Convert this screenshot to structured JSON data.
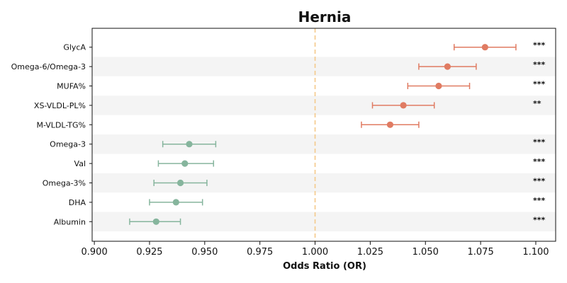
{
  "chart_data": {
    "type": "forest",
    "title": "Hernia",
    "xlabel": "Odds Ratio (OR)",
    "xlim": [
      0.899,
      1.109
    ],
    "xticks": [
      "0.900",
      "0.925",
      "0.950",
      "0.975",
      "1.000",
      "1.025",
      "1.050",
      "1.075",
      "1.100"
    ],
    "reference_line": 1.0,
    "colors": {
      "positive": "#e07b62",
      "negative": "#86b59d",
      "reference": "#f5c98a",
      "band": "#f4f4f4"
    },
    "rows": [
      {
        "label": "GlycA",
        "or": 1.077,
        "lo": 1.063,
        "hi": 1.091,
        "sig": "***",
        "direction": "positive"
      },
      {
        "label": "Omega-6/Omega-3",
        "or": 1.06,
        "lo": 1.047,
        "hi": 1.073,
        "sig": "***",
        "direction": "positive"
      },
      {
        "label": "MUFA%",
        "or": 1.056,
        "lo": 1.042,
        "hi": 1.07,
        "sig": "***",
        "direction": "positive"
      },
      {
        "label": "XS-VLDL-PL%",
        "or": 1.04,
        "lo": 1.026,
        "hi": 1.054,
        "sig": "**",
        "direction": "positive"
      },
      {
        "label": "M-VLDL-TG%",
        "or": 1.034,
        "lo": 1.021,
        "hi": 1.047,
        "sig": "",
        "direction": "positive"
      },
      {
        "label": "Omega-3",
        "or": 0.943,
        "lo": 0.931,
        "hi": 0.955,
        "sig": "***",
        "direction": "negative"
      },
      {
        "label": "Val",
        "or": 0.941,
        "lo": 0.929,
        "hi": 0.954,
        "sig": "***",
        "direction": "negative"
      },
      {
        "label": "Omega-3%",
        "or": 0.939,
        "lo": 0.927,
        "hi": 0.951,
        "sig": "***",
        "direction": "negative"
      },
      {
        "label": "DHA",
        "or": 0.937,
        "lo": 0.925,
        "hi": 0.949,
        "sig": "***",
        "direction": "negative"
      },
      {
        "label": "Albumin",
        "or": 0.928,
        "lo": 0.916,
        "hi": 0.939,
        "sig": "***",
        "direction": "negative"
      }
    ]
  }
}
